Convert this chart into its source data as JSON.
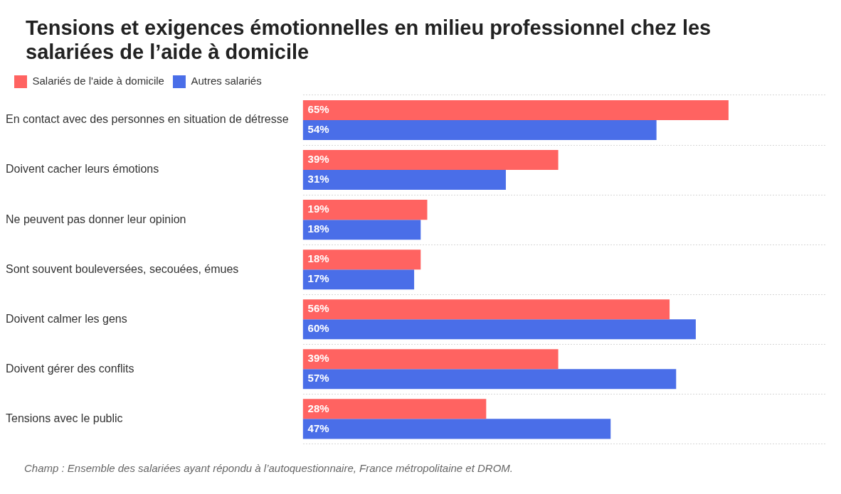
{
  "chart_data": {
    "type": "bar",
    "orientation": "horizontal",
    "title": "Tensions et exigences émotionnelles en milieu professionnel chez les salariées de l’aide à domicile",
    "categories": [
      "En contact avec des personnes en situation de détresse",
      "Doivent cacher leurs émotions",
      "Ne peuvent pas donner leur opinion",
      "Sont souvent bouleversées, secouées, émues",
      "Doivent calmer les gens",
      "Doivent gérer des conflits",
      "Tensions avec le public"
    ],
    "series": [
      {
        "name": "Salariés de l'aide à domicile",
        "color": "#ff6361",
        "values": [
          65,
          39,
          19,
          18,
          56,
          39,
          28
        ],
        "value_labels": [
          "65%",
          "39%",
          "19%",
          "18%",
          "56%",
          "39%",
          "28%"
        ]
      },
      {
        "name": "Autres salariés",
        "color": "#4a6ee8",
        "values": [
          54,
          31,
          18,
          17,
          60,
          57,
          47
        ],
        "value_labels": [
          "54%",
          "31%",
          "18%",
          "17%",
          "60%",
          "57%",
          "47%"
        ]
      }
    ],
    "xlim": [
      0,
      80
    ],
    "tick_labels": "y",
    "grid": "y",
    "legend": "top left",
    "annotations": [
      "Champ : Ensemble des salariées ayant répondu à l’autoquestionnaire, France métropolitaine et DROM."
    ]
  }
}
